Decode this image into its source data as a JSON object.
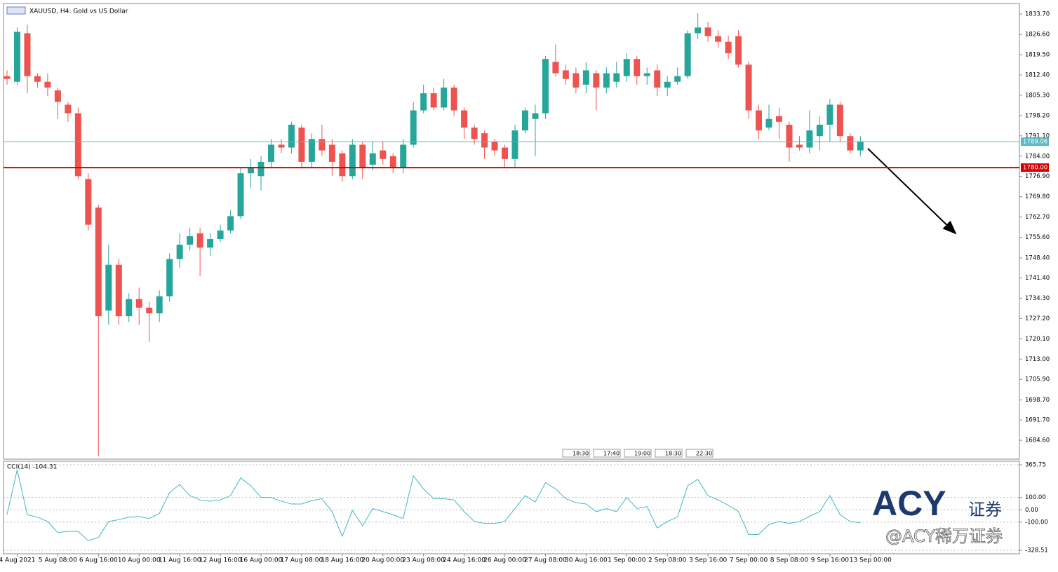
{
  "chart_data": [
    {
      "type": "candlestick",
      "title": "XAUUSD, H4:  Gold vs US Dollar",
      "series": [
        {
          "up_color": "#26a69a",
          "down_color": "#ef5350",
          "open": [
            1812,
            1810,
            1827,
            1812,
            1810,
            1807,
            1802,
            1799,
            1776,
            1766,
            1730,
            1746,
            1728,
            1734,
            1731,
            1729,
            1735,
            1748,
            1753,
            1757,
            1752,
            1755,
            1758,
            1763,
            1778,
            1777,
            1782,
            1788,
            1787,
            1794,
            1782,
            1790,
            1788,
            1785,
            1777,
            1788,
            1781,
            1786,
            1784,
            1780,
            1788,
            1800,
            1806,
            1801,
            1808,
            1800,
            1794,
            1792,
            1789,
            1787,
            1783,
            1793,
            1797,
            1799,
            1817,
            1814,
            1813,
            1809,
            1813,
            1808,
            1810,
            1812,
            1818,
            1812,
            1814,
            1808,
            1810,
            1812,
            1827,
            1829,
            1826,
            1824,
            1826,
            1816,
            1800,
            1794,
            1798,
            1795,
            1788,
            1787,
            1791,
            1795,
            1802,
            1791,
            1786,
            null
          ],
          "close": [
            1811,
            1827.5,
            1812,
            1810,
            1808,
            1803,
            1799,
            1777,
            1760,
            1728,
            1746,
            1728,
            1734,
            1731,
            1729,
            1735,
            1748,
            1753,
            1756,
            1752,
            1755,
            1758,
            1763,
            1778,
            1780,
            1782,
            1788,
            1787,
            1795,
            1782,
            1790,
            1786,
            1782,
            1777,
            1788,
            1780,
            1785,
            1783,
            1780,
            1788,
            1800,
            1806,
            1801,
            1808,
            1800,
            1794,
            1790,
            1787,
            1786,
            1783,
            1793,
            1800,
            1799,
            1818,
            1813,
            1811,
            1808,
            1814,
            1808,
            1813,
            1813,
            1818,
            1812,
            1813,
            1808,
            1810,
            1812,
            1827,
            1829,
            1826,
            1824,
            1820,
            1816,
            1800,
            1793,
            1797,
            1796,
            1787,
            1787,
            1793,
            1795,
            1802,
            1791,
            1786,
            1789.06,
            null
          ],
          "high": [
            1814,
            1829,
            1830,
            1813,
            1813,
            1808,
            1803,
            1801,
            1778,
            1767,
            1753,
            1748,
            1736,
            1738,
            1733,
            1737,
            1750,
            1757,
            1759,
            1759,
            1757,
            1760,
            1765,
            1780,
            1783,
            1784,
            1790,
            1790,
            1796,
            1795,
            1792,
            1795,
            1790,
            1786,
            1790,
            1789,
            1789,
            1789,
            1785,
            1790,
            1803,
            1809,
            1808,
            1811,
            1809,
            1801,
            1795,
            1793,
            1790,
            1788,
            1795,
            1801,
            1802,
            1819,
            1823,
            1816,
            1815,
            1817,
            1814,
            1815,
            1817,
            1820,
            1819,
            1815,
            1816,
            1812,
            1815,
            1828,
            1834,
            1831,
            1828,
            1826,
            1828,
            1817,
            1802,
            1802,
            1801,
            1796,
            1791,
            1800,
            1798,
            1804,
            1803,
            1792,
            1791,
            null
          ],
          "low": [
            1809,
            1809,
            1806,
            1808,
            1805,
            1797,
            1796,
            1776,
            1758,
            1679,
            1725,
            1725,
            1726,
            1725,
            1719,
            1726,
            1733,
            1745,
            1751,
            1742,
            1749,
            1754,
            1757,
            1762,
            1773,
            1772,
            1780,
            1785,
            1785,
            1780,
            1780,
            1784,
            1777,
            1775,
            1776,
            1776,
            1779,
            1781,
            1778,
            1778,
            1787,
            1799,
            1800,
            1800,
            1798,
            1790,
            1788,
            1783,
            1784,
            1780,
            1780,
            1792,
            1784,
            1797,
            1812,
            1809,
            1806,
            1806,
            1800,
            1806,
            1808,
            1810,
            1809,
            1809,
            1805,
            1805,
            1809,
            1811,
            1825,
            1824,
            1822,
            1818,
            1815,
            1797,
            1790,
            1793,
            1790,
            1782,
            1786,
            1785,
            1786,
            1789,
            1789,
            1785,
            1784,
            null
          ]
        }
      ],
      "ylim": [
        1678,
        1837.4
      ],
      "yticks": [
        {
          "value": 1833.7,
          "label": "1833.70"
        },
        {
          "value": 1826.6,
          "label": "1826.60"
        },
        {
          "value": 1819.5,
          "label": "1819.50"
        },
        {
          "value": 1812.4,
          "label": "1812.40"
        },
        {
          "value": 1805.3,
          "label": "1805.30"
        },
        {
          "value": 1798.2,
          "label": "1798.20"
        },
        {
          "value": 1791.1,
          "label": "1791.10"
        },
        {
          "value": 1784,
          "label": "1784.00"
        },
        {
          "value": 1776.9,
          "label": "1776.90"
        },
        {
          "value": 1769.8,
          "label": "1769.80"
        },
        {
          "value": 1762.7,
          "label": "1762.70"
        },
        {
          "value": 1755.6,
          "label": "1755.60"
        },
        {
          "value": 1748.4,
          "label": "1748.40"
        },
        {
          "value": 1741.4,
          "label": "1741.40"
        },
        {
          "value": 1734.3,
          "label": "1734.30"
        },
        {
          "value": 1727.2,
          "label": "1727.20"
        },
        {
          "value": 1720.1,
          "label": "1720.10"
        },
        {
          "value": 1713,
          "label": "1713.00"
        },
        {
          "value": 1705.9,
          "label": "1705.90"
        },
        {
          "value": 1698.7,
          "label": "1698.70"
        },
        {
          "value": 1691.7,
          "label": "1691.70"
        },
        {
          "value": 1684.6,
          "label": "1684.60"
        }
      ],
      "levels": [
        {
          "value": 1789.06,
          "label": "1789.06",
          "color": "#5cb8c4"
        },
        {
          "value": 1780,
          "label": "1780.00",
          "color": "#d40000"
        }
      ],
      "trade_marker_labels": [
        "18:30",
        "17:40",
        "19:00",
        "18:30",
        "22:30"
      ],
      "grid": false
    },
    {
      "type": "line",
      "title": "CCI(14) -104.31",
      "categories": [
        null,
        "4 Aug 2021",
        null,
        null,
        null,
        "5 Aug 08:00",
        null,
        null,
        null,
        "6 Aug 16:00",
        null,
        null,
        null,
        "10 Aug 00:00",
        null,
        null,
        null,
        "11 Aug 16:00",
        null,
        null,
        null,
        "12 Aug 16:00",
        null,
        null,
        null,
        "16 Aug 00:00",
        null,
        null,
        null,
        "17 Aug 08:00",
        null,
        null,
        null,
        "18 Aug 16:00",
        null,
        null,
        null,
        "20 Aug 00:00",
        null,
        null,
        null,
        "23 Aug 08:00",
        null,
        null,
        null,
        "24 Aug 16:00",
        null,
        null,
        null,
        "26 Aug 00:00",
        null,
        null,
        null,
        "27 Aug 08:00",
        null,
        null,
        null,
        "30 Aug 16:00",
        null,
        null,
        null,
        "1 Sep 00:00",
        null,
        null,
        null,
        "2 Sep 08:00",
        null,
        null,
        null,
        "3 Sep 16:00",
        null,
        null,
        null,
        "7 Sep 00:00",
        null,
        null,
        null,
        "8 Sep 08:00",
        null,
        null,
        null,
        "9 Sep 16:00",
        null,
        null,
        null,
        "13 Sep 00:00"
      ],
      "series": [
        {
          "name": "CCI(14)",
          "color": "#3fb6c9",
          "values": [
            -40,
            325,
            -40,
            -60,
            -95,
            -185,
            -175,
            -175,
            -250,
            -225,
            -95,
            -80,
            -60,
            -55,
            -70,
            -30,
            140,
            205,
            115,
            80,
            70,
            80,
            115,
            258,
            195,
            100,
            100,
            70,
            47,
            47,
            74,
            90,
            -15,
            -215,
            -5,
            -130,
            10,
            -15,
            -40,
            -70,
            275,
            170,
            90,
            90,
            80,
            -15,
            -95,
            -110,
            -110,
            -95,
            10,
            115,
            63,
            220,
            170,
            90,
            58,
            47,
            -15,
            10,
            -15,
            100,
            10,
            26,
            -147,
            -95,
            -58,
            195,
            247,
            115,
            80,
            37,
            -15,
            -200,
            -200,
            -120,
            -95,
            -110,
            -95,
            -53,
            -15,
            115,
            -40,
            -95,
            -104.31,
            null
          ]
        }
      ],
      "ylim": [
        -357,
        394
      ],
      "yticks": [
        365.75,
        {
          "value": 100,
          "label": "100.00"
        },
        {
          "value": 0,
          "label": "0.00"
        },
        {
          "value": -100,
          "label": "-100.00"
        },
        -328.51
      ],
      "grid": true
    }
  ],
  "watermark": {
    "logo": "ACY",
    "logo_suffix": "证券",
    "handle": "@ACY稀万证券"
  }
}
